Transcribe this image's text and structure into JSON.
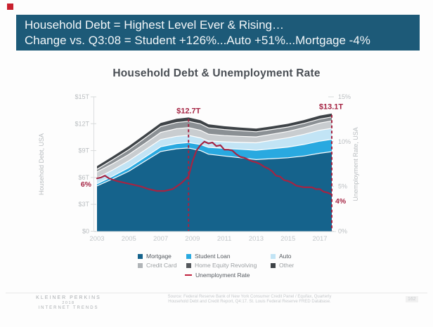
{
  "accent_color": "#c8202e",
  "banner": {
    "bg_color": "#1d5a78",
    "line1": "Household Debt = Highest Level Ever & Rising…",
    "line2": "Change vs. Q3:08 = Student +126%...Auto +51%...Mortgage -4%"
  },
  "chart_data": {
    "type": "area",
    "title": "Household Debt & Unemployment Rate",
    "x_range": [
      2003,
      2017.75
    ],
    "x_ticks": [
      2003,
      2005,
      2007,
      2009,
      2011,
      2013,
      2015,
      2017
    ],
    "left_axis": {
      "label": "Household Debt, USA",
      "range": [
        0,
        15
      ],
      "tick_values": [
        0,
        3,
        6,
        9,
        12,
        15
      ],
      "tick_labels": [
        "$0",
        "$3T",
        "$6T",
        "$9T",
        "$12T",
        "$15T"
      ]
    },
    "right_axis": {
      "label": "Unemployment Rate, USA",
      "range": [
        0,
        15
      ],
      "tick_values": [
        0,
        5,
        10,
        15
      ],
      "tick_labels": [
        "0%",
        "5%",
        "10%",
        "15%"
      ]
    },
    "grid": false,
    "stack_x": [
      2003,
      2004,
      2005,
      2006,
      2007,
      2008,
      2008.75,
      2009.5,
      2010,
      2011,
      2012,
      2013,
      2014,
      2015,
      2016,
      2017,
      2017.75
    ],
    "series": [
      {
        "name": "Mortgage",
        "color": "#15638c",
        "values": [
          5.05,
          5.85,
          6.7,
          7.8,
          8.9,
          9.2,
          9.29,
          9.0,
          8.6,
          8.4,
          8.2,
          8.0,
          8.1,
          8.2,
          8.4,
          8.7,
          8.88
        ]
      },
      {
        "name": "Student Loan",
        "color": "#29a9e0",
        "values": [
          0.24,
          0.3,
          0.39,
          0.45,
          0.52,
          0.58,
          0.61,
          0.68,
          0.76,
          0.85,
          0.95,
          1.03,
          1.11,
          1.19,
          1.28,
          1.36,
          1.38
        ]
      },
      {
        "name": "Auto",
        "color": "#c2e4f5",
        "values": [
          0.64,
          0.7,
          0.78,
          0.8,
          0.82,
          0.81,
          0.8,
          0.74,
          0.71,
          0.73,
          0.77,
          0.84,
          0.94,
          1.04,
          1.14,
          1.21,
          1.22
        ]
      },
      {
        "name": "Credit Card",
        "color": "#c9cdd0",
        "values": [
          0.69,
          0.7,
          0.71,
          0.73,
          0.79,
          0.85,
          0.86,
          0.84,
          0.76,
          0.7,
          0.67,
          0.66,
          0.68,
          0.71,
          0.75,
          0.81,
          0.83
        ]
      },
      {
        "name": "Home Equity Revolving",
        "color": "#8b9094",
        "values": [
          0.3,
          0.44,
          0.53,
          0.6,
          0.65,
          0.69,
          0.71,
          0.72,
          0.71,
          0.67,
          0.63,
          0.57,
          0.53,
          0.49,
          0.47,
          0.44,
          0.44
        ]
      },
      {
        "name": "Other",
        "color": "#3e4347",
        "values": [
          0.34,
          0.37,
          0.39,
          0.4,
          0.41,
          0.42,
          0.43,
          0.42,
          0.4,
          0.37,
          0.36,
          0.35,
          0.35,
          0.36,
          0.37,
          0.39,
          0.39
        ]
      }
    ],
    "line": {
      "name": "Unemployment Rate",
      "color": "#a52443",
      "points": [
        [
          2003.0,
          5.9
        ],
        [
          2003.25,
          6.0
        ],
        [
          2003.5,
          6.2
        ],
        [
          2003.75,
          5.9
        ],
        [
          2004.25,
          5.6
        ],
        [
          2004.75,
          5.4
        ],
        [
          2005.25,
          5.2
        ],
        [
          2005.75,
          5.0
        ],
        [
          2006.25,
          4.7
        ],
        [
          2006.75,
          4.5
        ],
        [
          2007.25,
          4.5
        ],
        [
          2007.75,
          4.7
        ],
        [
          2008.0,
          5.0
        ],
        [
          2008.25,
          5.3
        ],
        [
          2008.5,
          5.7
        ],
        [
          2008.75,
          6.1
        ],
        [
          2009.0,
          7.8
        ],
        [
          2009.25,
          9.0
        ],
        [
          2009.5,
          9.6
        ],
        [
          2009.75,
          10.0
        ],
        [
          2010.0,
          9.8
        ],
        [
          2010.25,
          9.9
        ],
        [
          2010.5,
          9.5
        ],
        [
          2010.75,
          9.6
        ],
        [
          2011.0,
          9.1
        ],
        [
          2011.25,
          9.1
        ],
        [
          2011.5,
          9.0
        ],
        [
          2011.75,
          8.6
        ],
        [
          2012.0,
          8.3
        ],
        [
          2012.25,
          8.2
        ],
        [
          2012.5,
          8.0
        ],
        [
          2012.75,
          7.8
        ],
        [
          2013.0,
          7.7
        ],
        [
          2013.25,
          7.5
        ],
        [
          2013.5,
          7.2
        ],
        [
          2013.75,
          7.0
        ],
        [
          2014.0,
          6.7
        ],
        [
          2014.25,
          6.2
        ],
        [
          2014.5,
          6.1
        ],
        [
          2014.75,
          5.7
        ],
        [
          2015.0,
          5.6
        ],
        [
          2015.25,
          5.4
        ],
        [
          2015.5,
          5.1
        ],
        [
          2015.75,
          5.0
        ],
        [
          2016.0,
          4.9
        ],
        [
          2016.25,
          4.9
        ],
        [
          2016.5,
          4.9
        ],
        [
          2016.75,
          4.7
        ],
        [
          2017.0,
          4.7
        ],
        [
          2017.25,
          4.4
        ],
        [
          2017.5,
          4.3
        ],
        [
          2017.75,
          4.1
        ]
      ]
    },
    "annotations": {
      "color": "#a52443",
      "peak1": {
        "text": "$12.7T",
        "x": 2008.75
      },
      "peak2": {
        "text": "$13.1T",
        "x": 2017.75
      },
      "line_start": {
        "text": "6%"
      },
      "line_end": {
        "text": "4%"
      }
    }
  },
  "legend": {
    "items": [
      {
        "label": "Mortgage",
        "color": "#15638c",
        "col": 0,
        "row": 0,
        "tone": "dark"
      },
      {
        "label": "Student Loan",
        "color": "#29a9e0",
        "col": 1,
        "row": 0,
        "tone": "dark"
      },
      {
        "label": "Auto",
        "color": "#c2e4f5",
        "col": 2,
        "row": 0,
        "tone": "dark"
      },
      {
        "label": "Credit Card",
        "color": "#b0b4b7",
        "col": 0,
        "row": 1,
        "tone": "light"
      },
      {
        "label": "Home Equity Revolving",
        "color": "#54585c",
        "col": 1,
        "row": 1,
        "tone": "light"
      },
      {
        "label": "Other",
        "color": "#3e4347",
        "col": 2,
        "row": 1,
        "tone": "light"
      }
    ],
    "line_item": {
      "label": "Unemployment Rate",
      "color": "#c0213d",
      "tone": "dark"
    }
  },
  "footer": {
    "brand": {
      "line1": "KLEINER PERKINS",
      "line2": "2018",
      "line3": "INTERNET TRENDS"
    },
    "source_line1": "Source: Federal Reserve Bank of New York Consumer Credit Panel / Equifax, Quarterly",
    "source_line2": "Household Debt and Credit Report, Q4:17. St. Louis Federal Reserve FRED Database.",
    "page_number": "162"
  }
}
